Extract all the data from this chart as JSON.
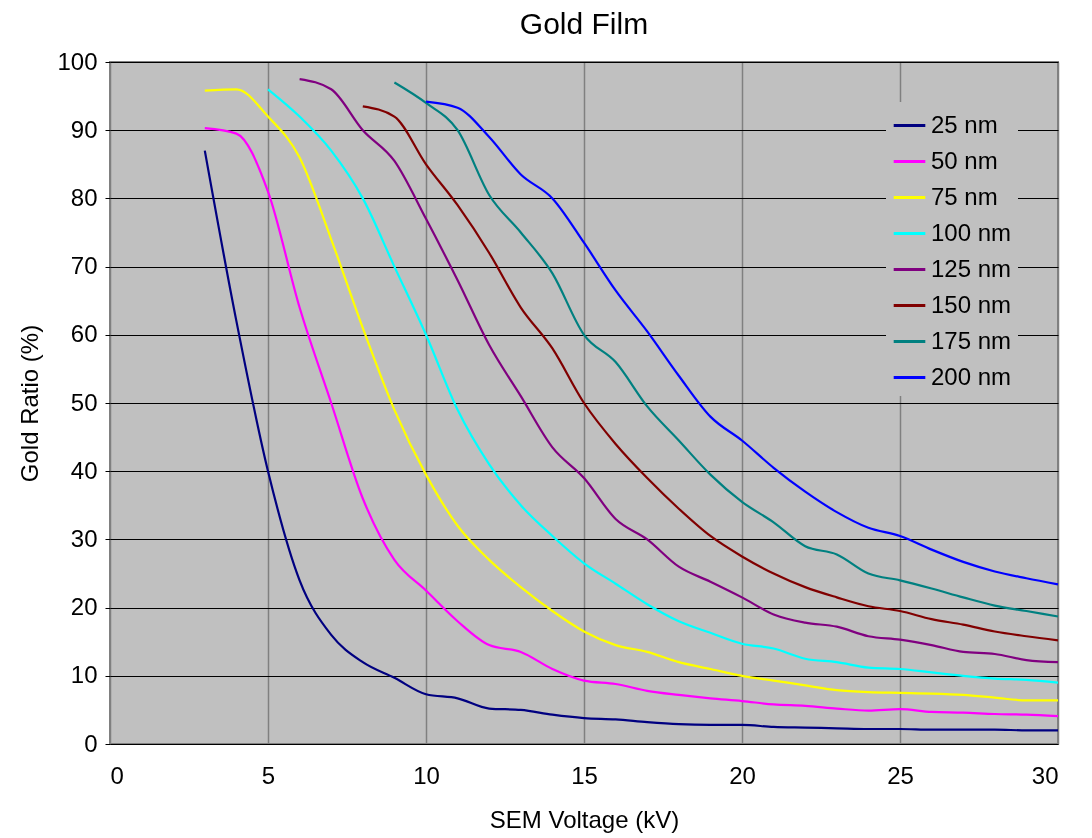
{
  "chart_data": {
    "type": "line",
    "title": "Gold Film",
    "xlabel": "SEM Voltage (kV)",
    "ylabel": "Gold Ratio (%)",
    "xlim": [
      0,
      30
    ],
    "xticks": [
      0,
      5,
      10,
      15,
      20,
      25,
      30
    ],
    "ylim": [
      0,
      100
    ],
    "yticks": [
      0,
      10,
      20,
      30,
      40,
      50,
      60,
      70,
      80,
      90,
      100
    ],
    "grid": true,
    "legend": "top right",
    "series": [
      {
        "name": "25 nm",
        "color": "#000080",
        "x": [
          3,
          4,
          5,
          6,
          7,
          8,
          9,
          10,
          11,
          12,
          13,
          14,
          15,
          16,
          17,
          18,
          19,
          20,
          21,
          22,
          23,
          24,
          25,
          26,
          27,
          28,
          29,
          30
        ],
        "values": [
          87,
          62,
          40,
          24,
          16,
          12,
          9.7,
          7.3,
          6.7,
          5.2,
          5,
          4.3,
          3.8,
          3.6,
          3.2,
          2.9,
          2.8,
          2.8,
          2.5,
          2.4,
          2.3,
          2.2,
          2.2,
          2.1,
          2.1,
          2.1,
          2,
          2
        ]
      },
      {
        "name": "50 nm",
        "color": "#ff00ff",
        "x": [
          3,
          4,
          5,
          6,
          7,
          8,
          9,
          10,
          11,
          12,
          13,
          14,
          15,
          16,
          17,
          18,
          19,
          20,
          21,
          22,
          23,
          24,
          25,
          26,
          27,
          28,
          29,
          30
        ],
        "values": [
          90.3,
          89.5,
          81,
          64,
          50,
          36,
          27,
          22.5,
          18,
          14.5,
          13.5,
          11,
          9.3,
          8.8,
          7.8,
          7.2,
          6.7,
          6.3,
          5.8,
          5.6,
          5.2,
          4.9,
          5.1,
          4.7,
          4.6,
          4.4,
          4.3,
          4.1
        ]
      },
      {
        "name": "75 nm",
        "color": "#ffff00",
        "x": [
          3,
          4,
          5,
          6,
          7,
          8,
          9,
          10,
          11,
          12,
          13,
          14,
          15,
          16,
          17,
          18,
          19,
          20,
          21,
          22,
          23,
          24,
          25,
          26,
          27,
          28,
          29,
          30
        ],
        "values": [
          95.8,
          96,
          92,
          86,
          74,
          61,
          49,
          39.5,
          32,
          27,
          23,
          19.5,
          16.5,
          14.5,
          13.5,
          12,
          11,
          10,
          9.3,
          8.6,
          7.9,
          7.6,
          7.5,
          7.4,
          7.2,
          6.8,
          6.4,
          6.4
        ]
      },
      {
        "name": "100 nm",
        "color": "#00ffff",
        "x": [
          5,
          6,
          7,
          8,
          9,
          10,
          11,
          12,
          13,
          14,
          15,
          16,
          17,
          18,
          19,
          20,
          21,
          22,
          23,
          24,
          25,
          26,
          27,
          28,
          29,
          30
        ],
        "values": [
          96,
          92,
          87,
          80,
          70,
          60,
          49,
          41,
          35,
          30.5,
          26.5,
          23.5,
          20.5,
          18,
          16.3,
          14.7,
          14,
          12.5,
          12,
          11.2,
          11,
          10.5,
          10,
          9.6,
          9.4,
          9
        ]
      },
      {
        "name": "125 nm",
        "color": "#800080",
        "x": [
          6,
          7,
          8,
          9,
          10,
          11,
          12,
          13,
          14,
          15,
          16,
          17,
          18,
          19,
          20,
          21,
          22,
          23,
          24,
          25,
          26,
          27,
          28,
          29,
          30
        ],
        "values": [
          97.5,
          96,
          90,
          85.5,
          77,
          68,
          58.5,
          51,
          43.5,
          39,
          33,
          30,
          26,
          23.8,
          21.5,
          19,
          17.8,
          17.2,
          15.8,
          15.3,
          14.5,
          13.5,
          13.2,
          12.3,
          12
        ]
      },
      {
        "name": "150 nm",
        "color": "#800000",
        "x": [
          8,
          9,
          10,
          11,
          12,
          13,
          14,
          15,
          16,
          17,
          18,
          19,
          20,
          21,
          22,
          23,
          24,
          25,
          26,
          27,
          28,
          29,
          30
        ],
        "values": [
          93.5,
          92,
          85,
          79,
          72,
          64,
          58,
          50,
          44,
          39,
          34.5,
          30.5,
          27.5,
          25,
          23,
          21.5,
          20.2,
          19.5,
          18.3,
          17.5,
          16.5,
          15.8,
          15.2
        ]
      },
      {
        "name": "175 nm",
        "color": "#008080",
        "x": [
          9,
          10,
          11,
          12,
          13,
          14,
          15,
          16,
          17,
          18,
          19,
          20,
          21,
          22,
          23,
          24,
          25,
          26,
          27,
          28,
          29,
          30
        ],
        "values": [
          97,
          94,
          90,
          80.5,
          75,
          69,
          60,
          56,
          49.5,
          44.5,
          39.5,
          35.5,
          32.5,
          29,
          27.8,
          25,
          24,
          22.8,
          21.5,
          20.3,
          19.5,
          18.7
        ]
      },
      {
        "name": "200 nm",
        "color": "#0000ff",
        "x": [
          10,
          11,
          12,
          13,
          14,
          15,
          16,
          17,
          18,
          19,
          20,
          21,
          22,
          23,
          24,
          25,
          26,
          27,
          28,
          29,
          30
        ],
        "values": [
          94.2,
          93.3,
          89,
          83.5,
          80,
          73.5,
          66.5,
          60.5,
          54,
          48,
          44.5,
          40.5,
          37,
          34,
          31.7,
          30.5,
          28.5,
          26.7,
          25.3,
          24.3,
          23.4
        ]
      }
    ]
  }
}
